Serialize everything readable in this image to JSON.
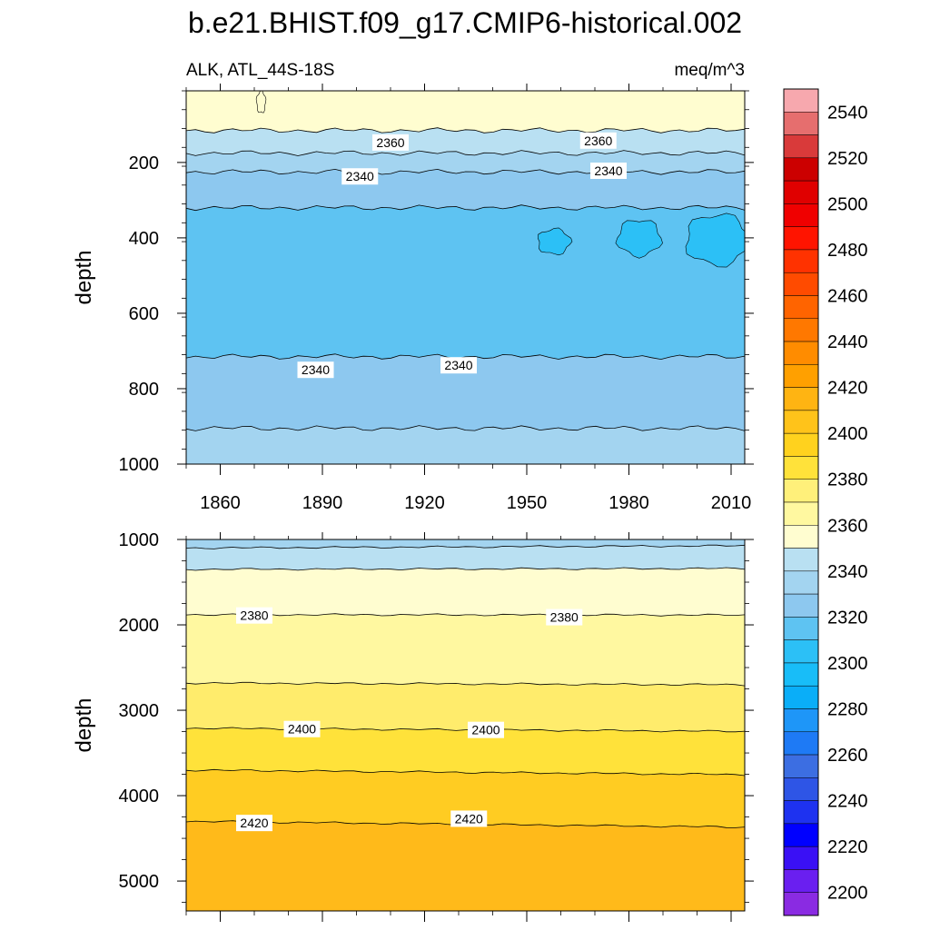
{
  "title": "b.e21.BHIST.f09_g17.CMIP6-historical.002",
  "chart_data": [
    {
      "type": "contour",
      "subtitle_left": "ALK, ATL_44S-18S",
      "subtitle_right": "meq/m^3",
      "ylabel": "depth",
      "xlabel": "",
      "xlim": [
        1850,
        2014
      ],
      "ylim": [
        1000,
        10
      ],
      "x_ticks": [
        1860,
        1890,
        1920,
        1950,
        1980,
        2010
      ],
      "x_tick_labels": [
        "1860",
        "1890",
        "1920",
        "1950",
        "1980",
        "2010"
      ],
      "y_ticks": [
        200,
        400,
        600,
        800,
        1000
      ],
      "y_tick_labels": [
        "200",
        "400",
        "600",
        "800",
        "1000"
      ],
      "bands": [
        {
          "lower": 2370,
          "upper": 2380,
          "color": "#FFFDD0",
          "top": 10,
          "bottom": 115
        },
        {
          "lower": 2360,
          "upper": 2370,
          "color": "#B9E0F2",
          "top": 115,
          "bottom": 175
        },
        {
          "lower": 2350,
          "upper": 2360,
          "color": "#A3D4F0",
          "top": 175,
          "bottom": 225
        },
        {
          "lower": 2340,
          "upper": 2350,
          "color": "#8DC8EF",
          "top": 225,
          "bottom": 320
        },
        {
          "lower": 2330,
          "upper": 2340,
          "color": "#5EC3F2",
          "top": 320,
          "bottom": 715
        },
        {
          "lower": 2340,
          "upper": 2350,
          "color": "#8DC8EF",
          "top": 715,
          "bottom": 905
        },
        {
          "lower": 2350,
          "upper": 2360,
          "color": "#A3D4F0",
          "top": 905,
          "bottom": 1000
        }
      ],
      "contour_levels": [
        2360,
        2350,
        2340,
        2340,
        2350
      ],
      "contour_labels": [
        {
          "text": "2360",
          "x": 1910,
          "y": 147
        },
        {
          "text": "2360",
          "x": 1971,
          "y": 142
        },
        {
          "text": "2340",
          "x": 1901,
          "y": 237
        },
        {
          "text": "2340",
          "x": 1974,
          "y": 222
        },
        {
          "text": "2340",
          "x": 1888,
          "y": 750
        },
        {
          "text": "2340",
          "x": 1930,
          "y": 738
        }
      ],
      "patches": [
        {
          "value": 2320,
          "color": "#2CC0F6",
          "center": [
            1983,
            400
          ]
        },
        {
          "value": 2320,
          "color": "#2CC0F6",
          "center": [
            2006,
            405
          ]
        },
        {
          "value": 2320,
          "color": "#2CC0F6",
          "center": [
            1958,
            410
          ]
        },
        {
          "value": 2380,
          "color": "#FFFDD0",
          "center": [
            1872,
            40
          ]
        }
      ]
    },
    {
      "type": "contour",
      "ylabel": "depth",
      "xlabel": "",
      "xlim": [
        1850,
        2014
      ],
      "ylim": [
        5350,
        1000
      ],
      "x_ticks": [
        1860,
        1890,
        1920,
        1950,
        1980,
        2010
      ],
      "x_tick_labels": [
        "",
        "",
        "",
        "",
        "",
        ""
      ],
      "y_ticks": [
        1000,
        2000,
        3000,
        4000,
        5000
      ],
      "y_tick_labels": [
        "1000",
        "2000",
        "3000",
        "4000",
        "5000"
      ],
      "bands": [
        {
          "lower": 2350,
          "upper": 2360,
          "color": "#A3D4F0",
          "top": 1000,
          "bottom": 1100
        },
        {
          "lower": 2360,
          "upper": 2370,
          "color": "#B9E0F2",
          "top": 1100,
          "bottom": 1350
        },
        {
          "lower": 2370,
          "upper": 2380,
          "color": "#FFFDD0",
          "top": 1350,
          "bottom": 1880
        },
        {
          "lower": 2380,
          "upper": 2390,
          "color": "#FFF8A0",
          "top": 1880,
          "bottom": 2680
        },
        {
          "lower": 2390,
          "upper": 2400,
          "color": "#FFEC6C",
          "top": 2680,
          "bottom": 3210
        },
        {
          "lower": 2400,
          "upper": 2410,
          "color": "#FFE23A",
          "top": 3210,
          "bottom": 3700
        },
        {
          "lower": 2410,
          "upper": 2420,
          "color": "#FFCC22",
          "top": 3700,
          "bottom": 4300
        },
        {
          "lower": 2420,
          "upper": 2430,
          "color": "#FFBA1A",
          "top": 4300,
          "bottom": 5350
        }
      ],
      "contour_labels": [
        {
          "text": "2380",
          "x": 1870,
          "y": 1890
        },
        {
          "text": "2380",
          "x": 1961,
          "y": 1910
        },
        {
          "text": "2400",
          "x": 1884,
          "y": 3220
        },
        {
          "text": "2400",
          "x": 1938,
          "y": 3230
        },
        {
          "text": "2420",
          "x": 1870,
          "y": 4320
        },
        {
          "text": "2420",
          "x": 1933,
          "y": 4270
        }
      ]
    }
  ],
  "colorbar": {
    "tick_labels": [
      "2200",
      "2220",
      "2240",
      "2260",
      "2280",
      "2300",
      "2320",
      "2340",
      "2360",
      "2380",
      "2400",
      "2420",
      "2440",
      "2460",
      "2480",
      "2500",
      "2520",
      "2540"
    ],
    "colors": [
      "#8A2BE2",
      "#6A1FF0",
      "#3A10F5",
      "#0000FF",
      "#1E32F0",
      "#2E55E6",
      "#3C6EE2",
      "#1E7AF5",
      "#1E96F8",
      "#0AAEF8",
      "#18BDF8",
      "#2CC0F6",
      "#5EC3F2",
      "#8DC8EF",
      "#A3D4F0",
      "#B9E0F2",
      "#FFFDD0",
      "#FFF8A0",
      "#FFF07A",
      "#FFE23A",
      "#FFD21E",
      "#FFC31A",
      "#FFB412",
      "#FFA000",
      "#FF8C00",
      "#FF7800",
      "#FF6400",
      "#FF4B00",
      "#FF3200",
      "#FF1400",
      "#F00000",
      "#E00000",
      "#CC0000",
      "#D93A3A",
      "#E66E6E",
      "#F7A8AE"
    ]
  }
}
